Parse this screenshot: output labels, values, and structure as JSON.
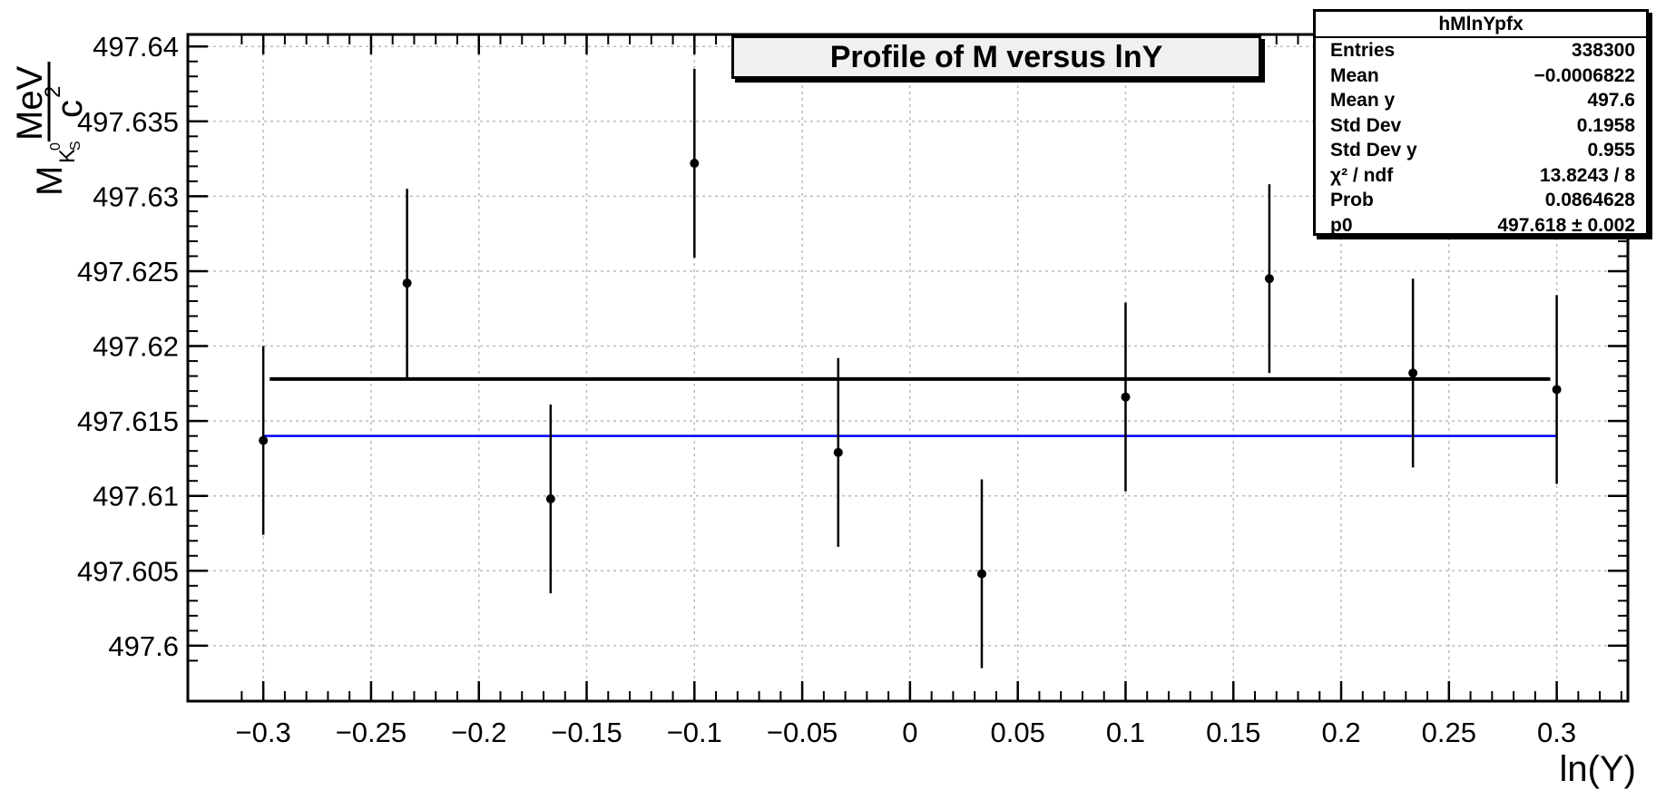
{
  "chart_data": {
    "type": "scatter",
    "title": "Profile of M versus lnY",
    "xlabel": "ln(Y)",
    "ylabel": {
      "main": "M",
      "sub": "K",
      "sub_sup": "0",
      "sub_sub": "S",
      "num": "MeV",
      "den": "c",
      "den_sup": "2"
    },
    "xlim": [
      -0.335,
      0.333
    ],
    "ylim": [
      497.5963,
      497.6408
    ],
    "xticks": [
      -0.3,
      -0.25,
      -0.2,
      -0.15,
      -0.1,
      -0.05,
      0,
      0.05,
      0.1,
      0.15,
      0.2,
      0.25,
      0.3
    ],
    "xtick_labels": [
      "−0.3",
      "−0.25",
      "−0.2",
      "−0.15",
      "−0.1",
      "−0.05",
      "0",
      "0.05",
      "0.1",
      "0.15",
      "0.2",
      "0.25",
      "0.3"
    ],
    "yticks": [
      497.6,
      497.605,
      497.61,
      497.615,
      497.62,
      497.625,
      497.63,
      497.635,
      497.64
    ],
    "ytick_labels": [
      "497.6",
      "497.605",
      "497.61",
      "497.615",
      "497.62",
      "497.625",
      "497.63",
      "497.635",
      "497.64"
    ],
    "grid": true,
    "series": [
      {
        "x": [
          -0.3,
          -0.2333,
          -0.1667,
          -0.1,
          -0.0333,
          0.0333,
          0.1,
          0.1667,
          0.2333,
          0.3
        ],
        "y": [
          497.6137,
          497.6242,
          497.6098,
          497.6322,
          497.6129,
          497.6048,
          497.6166,
          497.6245,
          497.6182,
          497.6171
        ],
        "yerr": [
          0.0063,
          0.0063,
          0.0063,
          0.0063,
          0.0063,
          0.0063,
          0.0063,
          0.0063,
          0.0063,
          0.0063
        ],
        "color": "#000000"
      }
    ],
    "lines": [
      {
        "y": 497.6178,
        "x": [
          -0.297,
          0.297
        ],
        "color": "#000000"
      },
      {
        "y": 497.614,
        "x": [
          -0.3,
          0.3
        ],
        "color": "#0000ff"
      }
    ]
  },
  "stats": {
    "name": "hMlnYpfx",
    "rows": [
      {
        "label": "Entries",
        "value": "338300"
      },
      {
        "label": "Mean",
        "value": "−0.0006822"
      },
      {
        "label": "Mean y",
        "value": "497.6"
      },
      {
        "label": "Std Dev",
        "value": "0.1958"
      },
      {
        "label": "Std Dev y",
        "value": "0.955"
      },
      {
        "label": "χ² / ndf",
        "value": "13.8243 / 8"
      },
      {
        "label": "Prob",
        "value": "0.0864628"
      },
      {
        "label": "p0",
        "value": "497.618 ± 0.002"
      }
    ]
  }
}
